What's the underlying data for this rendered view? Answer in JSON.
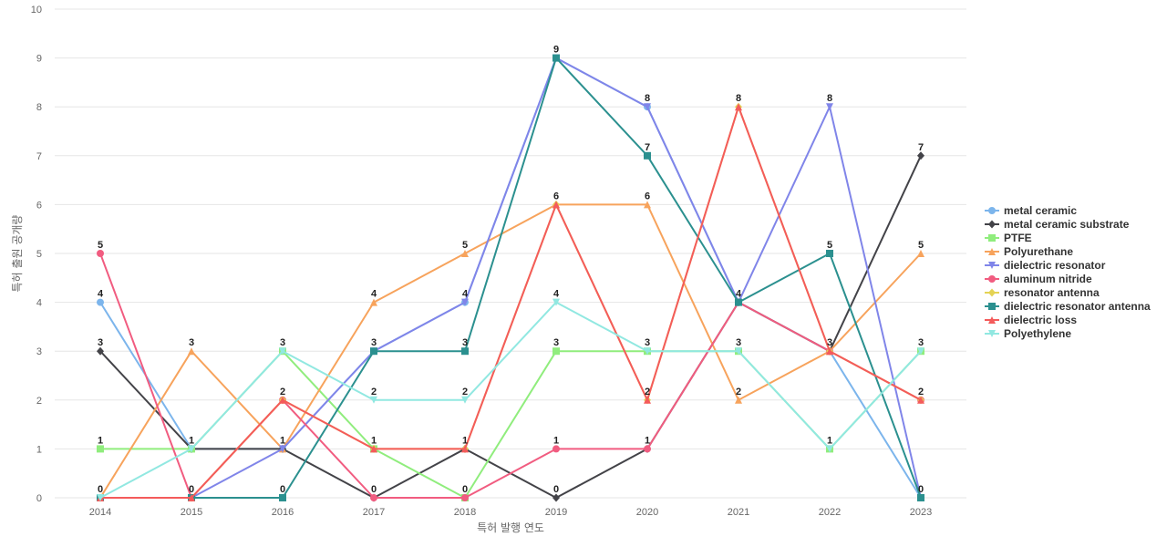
{
  "chart_data": {
    "type": "line",
    "title": "",
    "xlabel": "특허 발행 연도",
    "ylabel": "특허 출원 공개량",
    "x": [
      "2014",
      "2015",
      "2016",
      "2017",
      "2018",
      "2019",
      "2020",
      "2021",
      "2022",
      "2023"
    ],
    "ylim": [
      0,
      10
    ],
    "yticks": [
      0,
      1,
      2,
      3,
      4,
      5,
      6,
      7,
      8,
      9,
      10
    ],
    "grid": true,
    "legend_position": "right",
    "series": [
      {
        "name": "metal ceramic",
        "color": "#7cb5ec",
        "marker": "circle",
        "values": [
          4,
          1,
          1,
          3,
          4,
          9,
          8,
          4,
          3,
          0
        ]
      },
      {
        "name": "metal ceramic substrate",
        "color": "#434348",
        "marker": "diamond",
        "values": [
          3,
          1,
          1,
          0,
          1,
          0,
          1,
          4,
          3,
          7
        ]
      },
      {
        "name": "PTFE",
        "color": "#90ed7d",
        "marker": "square",
        "values": [
          1,
          1,
          3,
          1,
          0,
          3,
          3,
          3,
          1,
          3
        ]
      },
      {
        "name": "Polyurethane",
        "color": "#f7a35c",
        "marker": "triangle",
        "values": [
          0,
          3,
          1,
          4,
          5,
          6,
          6,
          2,
          3,
          5
        ]
      },
      {
        "name": "dielectric resonator",
        "color": "#8085e9",
        "marker": "triangle-down",
        "values": [
          0,
          0,
          1,
          3,
          4,
          9,
          8,
          4,
          8,
          0
        ]
      },
      {
        "name": "aluminum nitride",
        "color": "#f15c80",
        "marker": "circle",
        "values": [
          5,
          0,
          2,
          0,
          0,
          1,
          1,
          4,
          3,
          2
        ]
      },
      {
        "name": "resonator antenna",
        "color": "#e4d354",
        "marker": "diamond",
        "values": [
          0,
          0,
          2,
          1,
          1,
          6,
          2,
          8,
          3,
          2
        ]
      },
      {
        "name": "dielectric resonator antenna",
        "color": "#2b908f",
        "marker": "square",
        "values": [
          0,
          0,
          0,
          3,
          3,
          9,
          7,
          4,
          5,
          0
        ]
      },
      {
        "name": "dielectric loss",
        "color": "#f45b5b",
        "marker": "triangle",
        "values": [
          0,
          0,
          2,
          1,
          1,
          6,
          2,
          8,
          3,
          2
        ]
      },
      {
        "name": "Polyethylene",
        "color": "#91e8e1",
        "marker": "triangle-down",
        "values": [
          0,
          1,
          3,
          2,
          2,
          4,
          3,
          3,
          1,
          3
        ]
      }
    ],
    "data_labels": [
      {
        "x": "2014",
        "values": [
          5,
          4,
          3,
          1,
          0
        ]
      },
      {
        "x": "2015",
        "values": [
          3,
          1,
          0
        ]
      },
      {
        "x": "2016",
        "values": [
          3,
          2,
          1,
          0
        ]
      },
      {
        "x": "2017",
        "values": [
          4,
          3,
          2,
          1,
          0
        ]
      },
      {
        "x": "2018",
        "values": [
          5,
          4,
          3,
          2,
          1,
          0
        ]
      },
      {
        "x": "2019",
        "values": [
          9,
          6,
          4,
          3,
          1,
          0
        ]
      },
      {
        "x": "2020",
        "values": [
          8,
          7,
          6,
          3,
          2,
          1
        ]
      },
      {
        "x": "2021",
        "values": [
          8,
          4,
          3,
          2
        ]
      },
      {
        "x": "2022",
        "values": [
          8,
          5,
          3,
          1
        ]
      },
      {
        "x": "2023",
        "values": [
          7,
          5,
          3,
          2,
          0
        ]
      }
    ]
  }
}
